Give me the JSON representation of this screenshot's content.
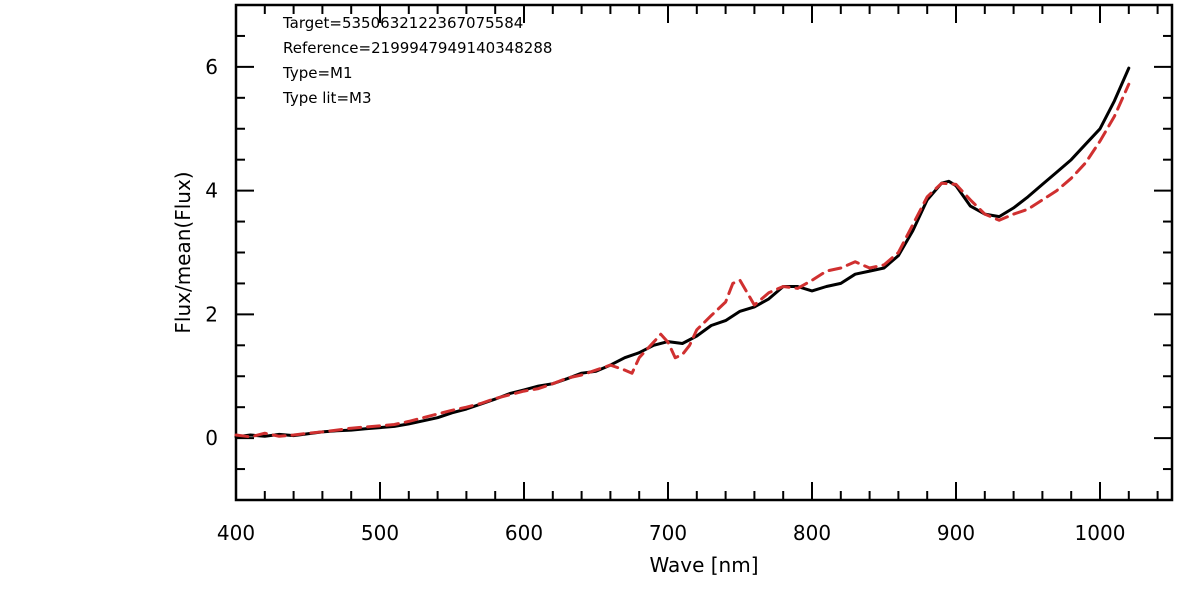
{
  "chart_data": {
    "type": "line",
    "title": "",
    "xlabel": "Wave [nm]",
    "ylabel": "Flux/mean(Flux)",
    "xlim": [
      400,
      1050
    ],
    "ylim": [
      -1,
      7
    ],
    "xticks": [
      400,
      500,
      600,
      700,
      800,
      900,
      1000
    ],
    "yticks": [
      0,
      2,
      4,
      6
    ],
    "grid": false,
    "legend": "none",
    "annotations": [
      "Target=5350632122367075584",
      "Reference=2199947949140348288",
      "Type=M1",
      "Type lit=M3"
    ],
    "series": [
      {
        "color": "#000000",
        "style": "solid",
        "x": [
          400,
          410,
          420,
          430,
          440,
          450,
          460,
          470,
          480,
          490,
          500,
          510,
          520,
          530,
          540,
          550,
          560,
          570,
          580,
          590,
          600,
          610,
          620,
          630,
          640,
          650,
          660,
          670,
          680,
          690,
          700,
          710,
          720,
          730,
          740,
          750,
          760,
          770,
          780,
          790,
          800,
          810,
          820,
          830,
          840,
          850,
          860,
          870,
          880,
          890,
          895,
          900,
          910,
          920,
          930,
          940,
          950,
          960,
          970,
          980,
          990,
          1000,
          1010,
          1020
        ],
        "y": [
          0.02,
          0.05,
          0.03,
          0.06,
          0.04,
          0.07,
          0.1,
          0.12,
          0.13,
          0.15,
          0.17,
          0.19,
          0.23,
          0.28,
          0.33,
          0.41,
          0.47,
          0.55,
          0.63,
          0.72,
          0.78,
          0.84,
          0.88,
          0.96,
          1.05,
          1.08,
          1.18,
          1.3,
          1.38,
          1.5,
          1.56,
          1.53,
          1.65,
          1.82,
          1.9,
          2.05,
          2.12,
          2.25,
          2.45,
          2.45,
          2.38,
          2.45,
          2.5,
          2.65,
          2.7,
          2.75,
          2.95,
          3.35,
          3.85,
          4.12,
          4.15,
          4.08,
          3.75,
          3.62,
          3.58,
          3.72,
          3.9,
          4.1,
          4.3,
          4.5,
          4.75,
          5.0,
          5.45,
          5.98
        ]
      },
      {
        "color": "#d03030",
        "style": "dashed",
        "x": [
          400,
          410,
          420,
          430,
          440,
          450,
          460,
          470,
          480,
          490,
          500,
          510,
          520,
          530,
          540,
          550,
          560,
          570,
          580,
          590,
          600,
          610,
          620,
          630,
          640,
          650,
          660,
          670,
          675,
          680,
          690,
          695,
          700,
          705,
          710,
          715,
          720,
          730,
          740,
          745,
          750,
          755,
          760,
          770,
          780,
          790,
          800,
          810,
          820,
          830,
          840,
          850,
          860,
          870,
          880,
          890,
          900,
          910,
          920,
          930,
          940,
          950,
          960,
          970,
          980,
          990,
          1000,
          1010,
          1020
        ],
        "y": [
          0.05,
          0.02,
          0.08,
          0.03,
          0.05,
          0.08,
          0.1,
          0.13,
          0.16,
          0.18,
          0.2,
          0.22,
          0.27,
          0.33,
          0.39,
          0.45,
          0.5,
          0.56,
          0.64,
          0.7,
          0.76,
          0.8,
          0.88,
          0.97,
          1.02,
          1.1,
          1.18,
          1.1,
          1.05,
          1.3,
          1.55,
          1.68,
          1.55,
          1.3,
          1.35,
          1.5,
          1.75,
          1.98,
          2.2,
          2.5,
          2.55,
          2.35,
          2.15,
          2.35,
          2.45,
          2.42,
          2.55,
          2.7,
          2.75,
          2.85,
          2.75,
          2.8,
          3.0,
          3.45,
          3.9,
          4.12,
          4.1,
          3.85,
          3.62,
          3.52,
          3.62,
          3.7,
          3.85,
          4.0,
          4.2,
          4.45,
          4.8,
          5.2,
          5.72
        ]
      }
    ]
  }
}
